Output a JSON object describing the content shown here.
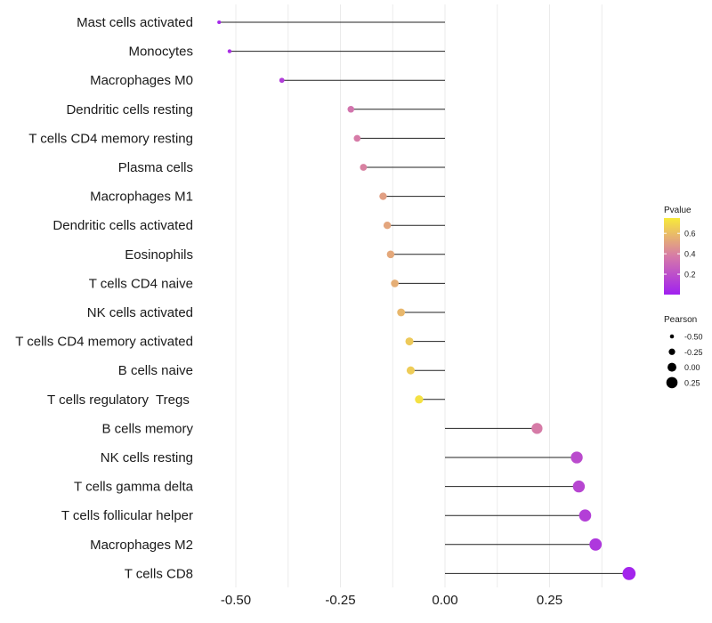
{
  "chart_data": {
    "type": "lollipop",
    "title": "",
    "xlabel": "",
    "ylabel": "",
    "xlim": [
      -0.58,
      0.48
    ],
    "x_ticks": [
      "-0.50",
      "-0.25",
      "0.00",
      "0.25"
    ],
    "x_tick_values": [
      -0.5,
      -0.25,
      0.0,
      0.25
    ],
    "grid": true,
    "categories": [
      "Mast cells activated",
      "Monocytes",
      "Macrophages M0",
      "Dendritic cells resting",
      "T cells CD4 memory resting",
      "Plasma cells",
      "Macrophages M1",
      "Dendritic cells activated",
      "Eosinophils",
      "T cells CD4 naive",
      "NK cells activated",
      "T cells CD4 memory activated",
      "B cells naive",
      "T cells regulatory  Tregs ",
      "B cells memory",
      "NK cells resting",
      "T cells gamma delta",
      "T cells follicular helper",
      "Macrophages M2",
      "T cells CD8"
    ],
    "pearson": [
      -0.54,
      -0.515,
      -0.39,
      -0.225,
      -0.21,
      -0.195,
      -0.148,
      -0.138,
      -0.13,
      -0.12,
      -0.105,
      -0.085,
      -0.082,
      -0.062,
      0.22,
      0.315,
      0.32,
      0.335,
      0.36,
      0.44
    ],
    "pvalue": [
      0.03,
      0.06,
      0.12,
      0.35,
      0.38,
      0.4,
      0.5,
      0.52,
      0.53,
      0.55,
      0.58,
      0.64,
      0.65,
      0.72,
      0.38,
      0.18,
      0.16,
      0.13,
      0.1,
      0.02
    ],
    "legend_color": {
      "title": "Pvalue",
      "ticks": [
        "0.6",
        "0.4",
        "0.2"
      ],
      "tick_values": [
        0.6,
        0.4,
        0.2
      ],
      "range": [
        0.0,
        0.75
      ],
      "colors": [
        "#a020f0",
        "#f7ea3a"
      ],
      "position": "right"
    },
    "legend_size": {
      "title": "Pearson",
      "labels": [
        "-0.50",
        "-0.25",
        "0.00",
        "0.25"
      ],
      "values": [
        -0.5,
        -0.25,
        0.0,
        0.25
      ],
      "position": "right"
    }
  }
}
